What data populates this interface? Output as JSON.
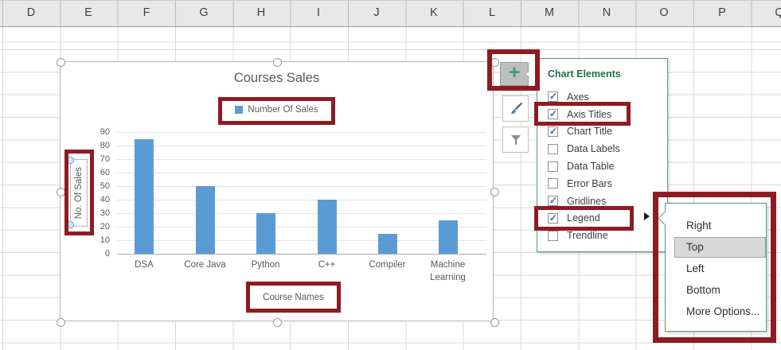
{
  "sheet": {
    "columns": [
      "D",
      "E",
      "F",
      "G",
      "H",
      "I",
      "J",
      "K",
      "L",
      "M",
      "N",
      "O",
      "P",
      "Q"
    ]
  },
  "chart": {
    "title": "Courses Sales",
    "legend_label": "Number Of Sales",
    "y_axis_title": "No. Of Sales",
    "x_axis_title": "Course Names"
  },
  "chart_data": {
    "type": "bar",
    "title": "Courses Sales",
    "categories": [
      "DSA",
      "Core Java",
      "Python",
      "C++",
      "Compiler",
      "Machine Learning"
    ],
    "series": [
      {
        "name": "Number Of Sales",
        "values": [
          85,
          50,
          30,
          40,
          15,
          25
        ]
      }
    ],
    "xlabel": "Course Names",
    "ylabel": "No. Of Sales",
    "ylim": [
      0,
      90
    ],
    "yticks": [
      "90",
      "80",
      "70",
      "60",
      "50",
      "40",
      "30",
      "20",
      "10",
      "0"
    ],
    "grid": true,
    "legend_position": "top",
    "bar_color": "#5B9BD5"
  },
  "chart_elements": {
    "panel_title": "Chart Elements",
    "items": [
      {
        "label": "Axes",
        "checked": true,
        "highlighted": false
      },
      {
        "label": "Axis Titles",
        "checked": true,
        "highlighted": true
      },
      {
        "label": "Chart Title",
        "checked": true,
        "highlighted": false
      },
      {
        "label": "Data Labels",
        "checked": false,
        "highlighted": false
      },
      {
        "label": "Data Table",
        "checked": false,
        "highlighted": false
      },
      {
        "label": "Error Bars",
        "checked": false,
        "highlighted": false
      },
      {
        "label": "Gridlines",
        "checked": true,
        "highlighted": false
      },
      {
        "label": "Legend",
        "checked": true,
        "highlighted": true
      },
      {
        "label": "Trendline",
        "checked": false,
        "highlighted": false
      }
    ]
  },
  "legend_submenu": {
    "items": [
      {
        "label": "Right",
        "selected": false
      },
      {
        "label": "Top",
        "selected": true
      },
      {
        "label": "Left",
        "selected": false
      },
      {
        "label": "Bottom",
        "selected": false
      },
      {
        "label": "More Options...",
        "selected": false
      }
    ]
  },
  "colors": {
    "bar": "#5B9BD5",
    "highlight_red": "#8E1B22",
    "excel_green": "#1E7145",
    "panel_border_green": "#5A9B77",
    "chart_text": "#595959"
  }
}
